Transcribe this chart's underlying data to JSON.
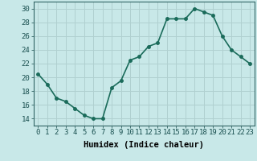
{
  "x": [
    0,
    1,
    2,
    3,
    4,
    5,
    6,
    7,
    8,
    9,
    10,
    11,
    12,
    13,
    14,
    15,
    16,
    17,
    18,
    19,
    20,
    21,
    22,
    23
  ],
  "y": [
    20.5,
    19.0,
    17.0,
    16.5,
    15.5,
    14.5,
    14.0,
    14.0,
    18.5,
    19.5,
    22.5,
    23.0,
    24.5,
    25.0,
    28.5,
    28.5,
    28.5,
    30.0,
    29.5,
    29.0,
    26.0,
    24.0,
    23.0,
    22.0
  ],
  "line_color": "#1a6b5a",
  "marker": "o",
  "markersize": 2.5,
  "linewidth": 1.2,
  "background_color": "#c8e8e8",
  "grid_color": "#b0d0d0",
  "xlabel": "Humidex (Indice chaleur)",
  "xlabel_fontsize": 7.5,
  "tick_fontsize": 6.5,
  "ylim": [
    13,
    31
  ],
  "yticks": [
    14,
    16,
    18,
    20,
    22,
    24,
    26,
    28,
    30
  ],
  "xlim": [
    -0.5,
    23.5
  ],
  "xticks": [
    0,
    1,
    2,
    3,
    4,
    5,
    6,
    7,
    8,
    9,
    10,
    11,
    12,
    13,
    14,
    15,
    16,
    17,
    18,
    19,
    20,
    21,
    22,
    23
  ],
  "xtick_labels": [
    "0",
    "1",
    "2",
    "3",
    "4",
    "5",
    "6",
    "7",
    "8",
    "9",
    "10",
    "11",
    "12",
    "13",
    "14",
    "15",
    "16",
    "17",
    "18",
    "19",
    "20",
    "21",
    "22",
    "23"
  ]
}
